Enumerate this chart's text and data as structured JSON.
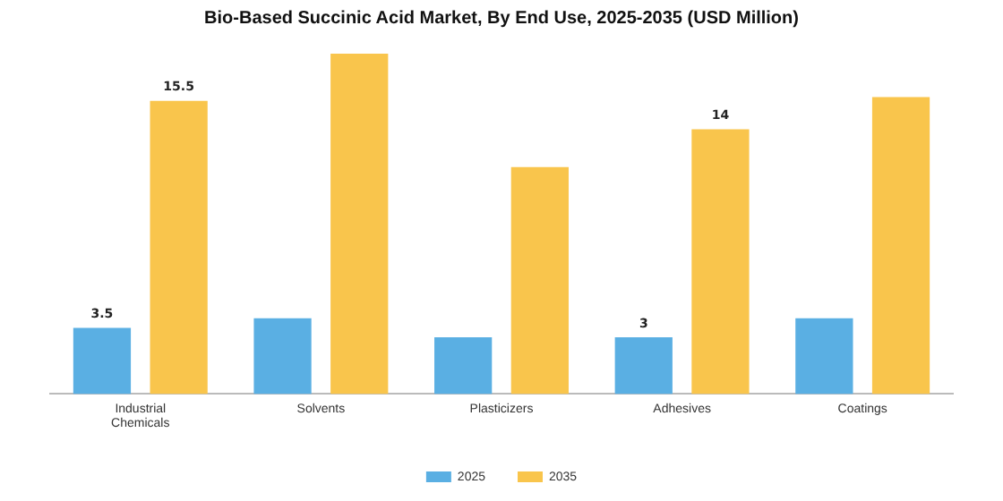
{
  "chart_data": {
    "type": "bar",
    "title": "Bio-Based Succinic Acid Market, By End Use, 2025-2035 (USD Million)",
    "categories": [
      "Industrial Chemicals",
      "Solvents",
      "Plasticizers",
      "Adhesives",
      "Coatings"
    ],
    "series": [
      {
        "name": "2025",
        "color": "#5aafe3",
        "values": [
          3.5,
          4,
          3,
          3,
          4
        ],
        "value_labels": [
          "3.5",
          null,
          null,
          "3",
          null
        ]
      },
      {
        "name": "2035",
        "color": "#f9c54c",
        "values": [
          15.5,
          18,
          12,
          14,
          15.7
        ],
        "value_labels": [
          "15.5",
          null,
          null,
          "14",
          null
        ]
      }
    ],
    "grid": false,
    "legend": "bottom"
  }
}
